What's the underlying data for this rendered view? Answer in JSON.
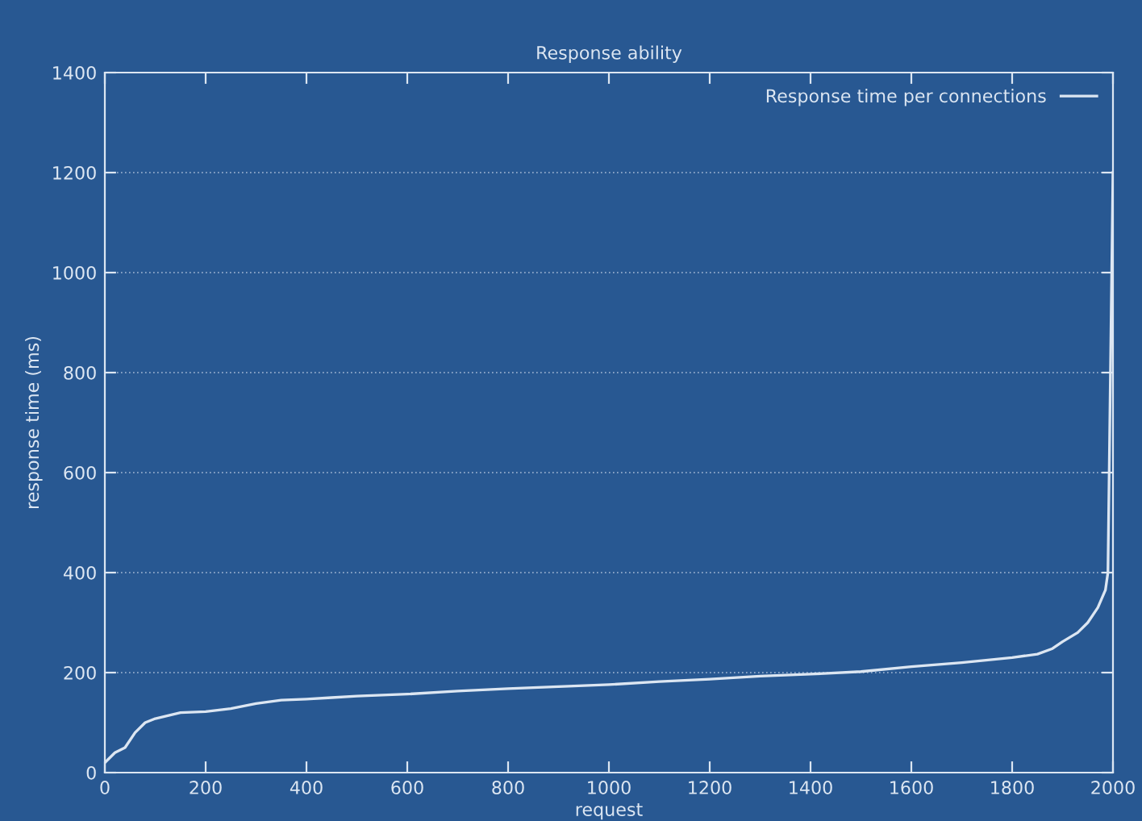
{
  "chart_data": {
    "type": "line",
    "title": "Response ability",
    "xlabel": "request",
    "ylabel": "response time (ms)",
    "xlim": [
      0,
      2000
    ],
    "ylim": [
      0,
      1400
    ],
    "xticks": [
      0,
      200,
      400,
      600,
      800,
      1000,
      1200,
      1400,
      1600,
      1800,
      2000
    ],
    "yticks": [
      0,
      200,
      400,
      600,
      800,
      1000,
      1200,
      1400
    ],
    "grid": "y",
    "legend": "top right",
    "series": [
      {
        "name": "Response time per connections",
        "color": "#dce6f2",
        "x": [
          0,
          20,
          40,
          60,
          80,
          100,
          150,
          200,
          250,
          300,
          350,
          400,
          450,
          500,
          600,
          700,
          800,
          900,
          1000,
          1100,
          1200,
          1300,
          1400,
          1500,
          1600,
          1700,
          1800,
          1850,
          1880,
          1900,
          1930,
          1950,
          1970,
          1985,
          1990,
          1995,
          2000
        ],
        "values": [
          20,
          40,
          50,
          80,
          100,
          108,
          120,
          122,
          128,
          138,
          145,
          147,
          150,
          153,
          157,
          163,
          168,
          172,
          176,
          182,
          187,
          193,
          197,
          202,
          212,
          220,
          230,
          237,
          248,
          262,
          280,
          300,
          330,
          365,
          400,
          800,
          1200
        ]
      }
    ]
  }
}
